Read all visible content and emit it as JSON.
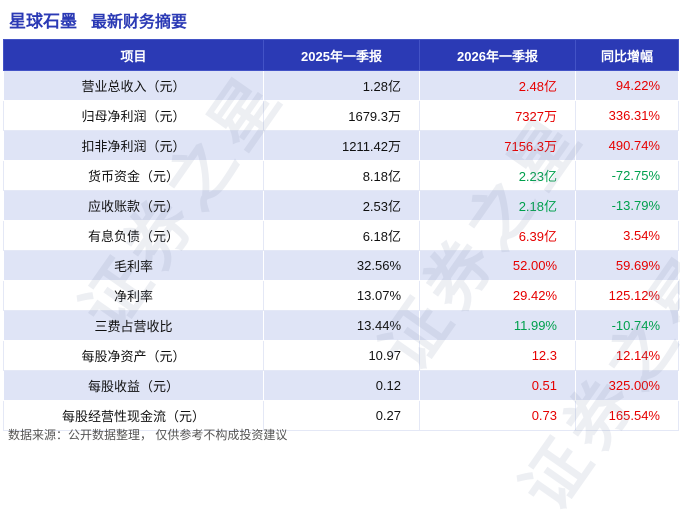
{
  "header": {
    "company": "星球石墨",
    "subtitle": "最新财务摘要"
  },
  "page": {
    "watermark": "证券之星",
    "footer": "数据来源：公开数据整理， 仅供参考不构成投资建议"
  },
  "colors": {
    "accent_blue": "#2b3ab5",
    "header_bg": "#2b3ab5",
    "row_alt_bg": "#dfe4f6",
    "up_red": "#e60000",
    "down_green": "#00a04d"
  },
  "chart_data": {
    "type": "table",
    "title": "星球石墨 最新财务摘要",
    "columns": [
      "项目",
      "2025年一季报",
      "2026年一季报",
      "同比增幅"
    ],
    "rows": [
      {
        "item": "营业总收入（元）",
        "q2025": "1.28亿",
        "q2026": "2.48亿",
        "yoy": "94.22%",
        "trend": "up"
      },
      {
        "item": "归母净利润（元）",
        "q2025": "1679.3万",
        "q2026": "7327万",
        "yoy": "336.31%",
        "trend": "up"
      },
      {
        "item": "扣非净利润（元）",
        "q2025": "1211.42万",
        "q2026": "7156.3万",
        "yoy": "490.74%",
        "trend": "up"
      },
      {
        "item": "货币资金（元）",
        "q2025": "8.18亿",
        "q2026": "2.23亿",
        "yoy": "-72.75%",
        "trend": "down"
      },
      {
        "item": "应收账款（元）",
        "q2025": "2.53亿",
        "q2026": "2.18亿",
        "yoy": "-13.79%",
        "trend": "down"
      },
      {
        "item": "有息负债（元）",
        "q2025": "6.18亿",
        "q2026": "6.39亿",
        "yoy": "3.54%",
        "trend": "up"
      },
      {
        "item": "毛利率",
        "q2025": "32.56%",
        "q2026": "52.00%",
        "yoy": "59.69%",
        "trend": "up"
      },
      {
        "item": "净利率",
        "q2025": "13.07%",
        "q2026": "29.42%",
        "yoy": "125.12%",
        "trend": "up"
      },
      {
        "item": "三费占营收比",
        "q2025": "13.44%",
        "q2026": "11.99%",
        "yoy": "-10.74%",
        "trend": "down"
      },
      {
        "item": "每股净资产（元）",
        "q2025": "10.97",
        "q2026": "12.3",
        "yoy": "12.14%",
        "trend": "up"
      },
      {
        "item": "每股收益（元）",
        "q2025": "0.12",
        "q2026": "0.51",
        "yoy": "325.00%",
        "trend": "up"
      },
      {
        "item": "每股经营性现金流（元）",
        "q2025": "0.27",
        "q2026": "0.73",
        "yoy": "165.54%",
        "trend": "up"
      }
    ]
  }
}
